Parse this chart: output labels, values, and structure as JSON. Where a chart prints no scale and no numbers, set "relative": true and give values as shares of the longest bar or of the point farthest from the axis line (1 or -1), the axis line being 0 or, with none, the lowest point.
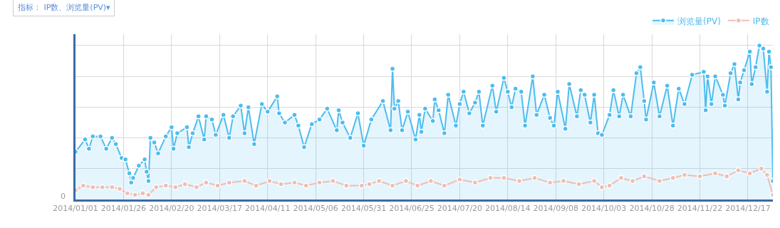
{
  "chart_data": {
    "type": "line",
    "relative": true,
    "grid": true,
    "legend": "top right",
    "marker": "circle",
    "annotations": [
      "指标： IP数、浏览量(PV)▾",
      "0"
    ],
    "xlim": [
      "2014-01-01",
      "2014-12-30"
    ],
    "xticks": [
      {
        "value": "2014-01-01",
        "label": "2014/01/01"
      },
      {
        "value": "2014-01-26",
        "label": "2014/01/26"
      },
      {
        "value": "2014-02-20",
        "label": "2014/02/20"
      },
      {
        "value": "2014-03-17",
        "label": "2014/03/17"
      },
      {
        "value": "2014-04-11",
        "label": "2014/04/11"
      },
      {
        "value": "2014-05-06",
        "label": "2014/05/06"
      },
      {
        "value": "2014-05-31",
        "label": "2014/05/31"
      },
      {
        "value": "2014-06-25",
        "label": "2014/06/25"
      },
      {
        "value": "2014-07-20",
        "label": "2014/07/20"
      },
      {
        "value": "2014-08-14",
        "label": "2014/08/14"
      },
      {
        "value": "2014-09-08",
        "label": "2014/09/08"
      },
      {
        "value": "2014-10-03",
        "label": "2014/10/03"
      },
      {
        "value": "2014-10-28",
        "label": "2014/10/28"
      },
      {
        "value": "2014-11-22",
        "label": "2014/11/22"
      },
      {
        "value": "2014-12-17",
        "label": "2014/12/17"
      }
    ],
    "series": [
      {
        "name": "浏览量(PV)",
        "type": "area",
        "color": "#4dbdef",
        "x": [
          "2014-01-01",
          "2014-01-06",
          "2014-01-08",
          "2014-01-10",
          "2014-01-14",
          "2014-01-17",
          "2014-01-20",
          "2014-01-22",
          "2014-01-25",
          "2014-01-27",
          "2014-01-29",
          "2014-01-30",
          "2014-01-31",
          "2014-02-03",
          "2014-02-06",
          "2014-02-07",
          "2014-02-08",
          "2014-02-09",
          "2014-02-11",
          "2014-02-13",
          "2014-02-17",
          "2014-02-20",
          "2014-02-21",
          "2014-02-23",
          "2014-02-28",
          "2014-03-01",
          "2014-03-03",
          "2014-03-06",
          "2014-03-09",
          "2014-03-10",
          "2014-03-13",
          "2014-03-15",
          "2014-03-19",
          "2014-03-22",
          "2014-03-24",
          "2014-03-28",
          "2014-03-30",
          "2014-04-01",
          "2014-04-04",
          "2014-04-08",
          "2014-04-11",
          "2014-04-16",
          "2014-04-17",
          "2014-04-20",
          "2014-04-25",
          "2014-04-27",
          "2014-04-30",
          "2014-05-04",
          "2014-05-08",
          "2014-05-12",
          "2014-05-17",
          "2014-05-18",
          "2014-05-20",
          "2014-05-24",
          "2014-05-28",
          "2014-05-31",
          "2014-06-04",
          "2014-06-10",
          "2014-06-14",
          "2014-06-15",
          "2014-06-16",
          "2014-06-18",
          "2014-06-20",
          "2014-06-23",
          "2014-06-27",
          "2014-06-29",
          "2014-06-30",
          "2014-07-02",
          "2014-07-06",
          "2014-07-07",
          "2014-07-09",
          "2014-07-12",
          "2014-07-14",
          "2014-07-18",
          "2014-07-20",
          "2014-07-22",
          "2014-07-25",
          "2014-07-28",
          "2014-07-30",
          "2014-08-01",
          "2014-08-06",
          "2014-08-08",
          "2014-08-12",
          "2014-08-14",
          "2014-08-16",
          "2014-08-18",
          "2014-08-21",
          "2014-08-23",
          "2014-08-27",
          "2014-08-29",
          "2014-09-02",
          "2014-09-05",
          "2014-09-07",
          "2014-09-09",
          "2014-09-13",
          "2014-09-15",
          "2014-09-19",
          "2014-09-21",
          "2014-09-23",
          "2014-09-26",
          "2014-09-28",
          "2014-09-30",
          "2014-10-02",
          "2014-10-06",
          "2014-10-08",
          "2014-10-11",
          "2014-10-13",
          "2014-10-17",
          "2014-10-20",
          "2014-10-22",
          "2014-10-24",
          "2014-10-25",
          "2014-10-29",
          "2014-11-01",
          "2014-11-05",
          "2014-11-08",
          "2014-11-11",
          "2014-11-14",
          "2014-11-18",
          "2014-11-24",
          "2014-11-25",
          "2014-11-26",
          "2014-11-28",
          "2014-11-30",
          "2014-12-04",
          "2014-12-05",
          "2014-12-08",
          "2014-12-10",
          "2014-12-12",
          "2014-12-13",
          "2014-12-15",
          "2014-12-18",
          "2014-12-19",
          "2014-12-21",
          "2014-12-23",
          "2014-12-25",
          "2014-12-27",
          "2014-12-28",
          "2014-12-29",
          "2014-12-30"
        ],
        "values": [
          0.31,
          0.39,
          0.33,
          0.41,
          0.41,
          0.33,
          0.4,
          0.36,
          0.27,
          0.26,
          0.17,
          0.11,
          0.14,
          0.22,
          0.26,
          0.18,
          0.12,
          0.4,
          0.37,
          0.3,
          0.41,
          0.47,
          0.33,
          0.43,
          0.47,
          0.34,
          0.43,
          0.54,
          0.39,
          0.54,
          0.52,
          0.42,
          0.55,
          0.4,
          0.54,
          0.61,
          0.43,
          0.6,
          0.36,
          0.62,
          0.57,
          0.67,
          0.56,
          0.5,
          0.55,
          0.48,
          0.34,
          0.49,
          0.52,
          0.59,
          0.45,
          0.58,
          0.5,
          0.4,
          0.56,
          0.35,
          0.52,
          0.64,
          0.45,
          0.85,
          0.59,
          0.64,
          0.45,
          0.57,
          0.39,
          0.55,
          0.44,
          0.59,
          0.51,
          0.65,
          0.58,
          0.43,
          0.68,
          0.48,
          0.62,
          0.7,
          0.56,
          0.63,
          0.7,
          0.48,
          0.74,
          0.57,
          0.79,
          0.7,
          0.6,
          0.72,
          0.7,
          0.48,
          0.8,
          0.55,
          0.68,
          0.53,
          0.48,
          0.7,
          0.46,
          0.75,
          0.54,
          0.71,
          0.68,
          0.5,
          0.68,
          0.43,
          0.42,
          0.55,
          0.71,
          0.54,
          0.68,
          0.54,
          0.82,
          0.86,
          0.64,
          0.52,
          0.76,
          0.54,
          0.74,
          0.48,
          0.72,
          0.62,
          0.81,
          0.83,
          0.58,
          0.8,
          0.62,
          0.8,
          0.68,
          0.61,
          0.82,
          0.88,
          0.65,
          0.76,
          0.84,
          0.96,
          0.75,
          0.86,
          1.0,
          0.98,
          0.7,
          0.96,
          0.86,
          0.12
        ]
      },
      {
        "name": "IP数",
        "color": "#f0bdb4",
        "x": [
          "2014-01-01",
          "2014-01-05",
          "2014-01-10",
          "2014-01-15",
          "2014-01-20",
          "2014-01-24",
          "2014-01-28",
          "2014-02-01",
          "2014-02-05",
          "2014-02-08",
          "2014-02-12",
          "2014-02-17",
          "2014-02-22",
          "2014-02-27",
          "2014-03-05",
          "2014-03-10",
          "2014-03-16",
          "2014-03-22",
          "2014-03-30",
          "2014-04-05",
          "2014-04-12",
          "2014-04-18",
          "2014-04-25",
          "2014-05-01",
          "2014-05-08",
          "2014-05-15",
          "2014-05-22",
          "2014-05-30",
          "2014-06-03",
          "2014-06-08",
          "2014-06-15",
          "2014-06-22",
          "2014-06-28",
          "2014-07-05",
          "2014-07-12",
          "2014-07-20",
          "2014-07-28",
          "2014-08-05",
          "2014-08-12",
          "2014-08-20",
          "2014-08-28",
          "2014-09-05",
          "2014-09-12",
          "2014-09-20",
          "2014-09-28",
          "2014-10-02",
          "2014-10-06",
          "2014-10-12",
          "2014-10-18",
          "2014-10-24",
          "2014-11-01",
          "2014-11-08",
          "2014-11-14",
          "2014-11-22",
          "2014-11-30",
          "2014-12-06",
          "2014-12-12",
          "2014-12-18",
          "2014-12-24",
          "2014-12-27",
          "2014-12-30"
        ],
        "values": [
          0.06,
          0.09,
          0.08,
          0.08,
          0.08,
          0.07,
          0.04,
          0.03,
          0.04,
          0.03,
          0.08,
          0.09,
          0.08,
          0.1,
          0.08,
          0.11,
          0.09,
          0.11,
          0.12,
          0.09,
          0.12,
          0.1,
          0.11,
          0.09,
          0.11,
          0.12,
          0.09,
          0.09,
          0.1,
          0.12,
          0.09,
          0.12,
          0.09,
          0.12,
          0.09,
          0.13,
          0.11,
          0.14,
          0.14,
          0.12,
          0.14,
          0.11,
          0.12,
          0.1,
          0.12,
          0.08,
          0.09,
          0.14,
          0.12,
          0.15,
          0.12,
          0.14,
          0.16,
          0.15,
          0.17,
          0.15,
          0.19,
          0.17,
          0.2,
          0.16,
          0.03
        ]
      }
    ]
  }
}
